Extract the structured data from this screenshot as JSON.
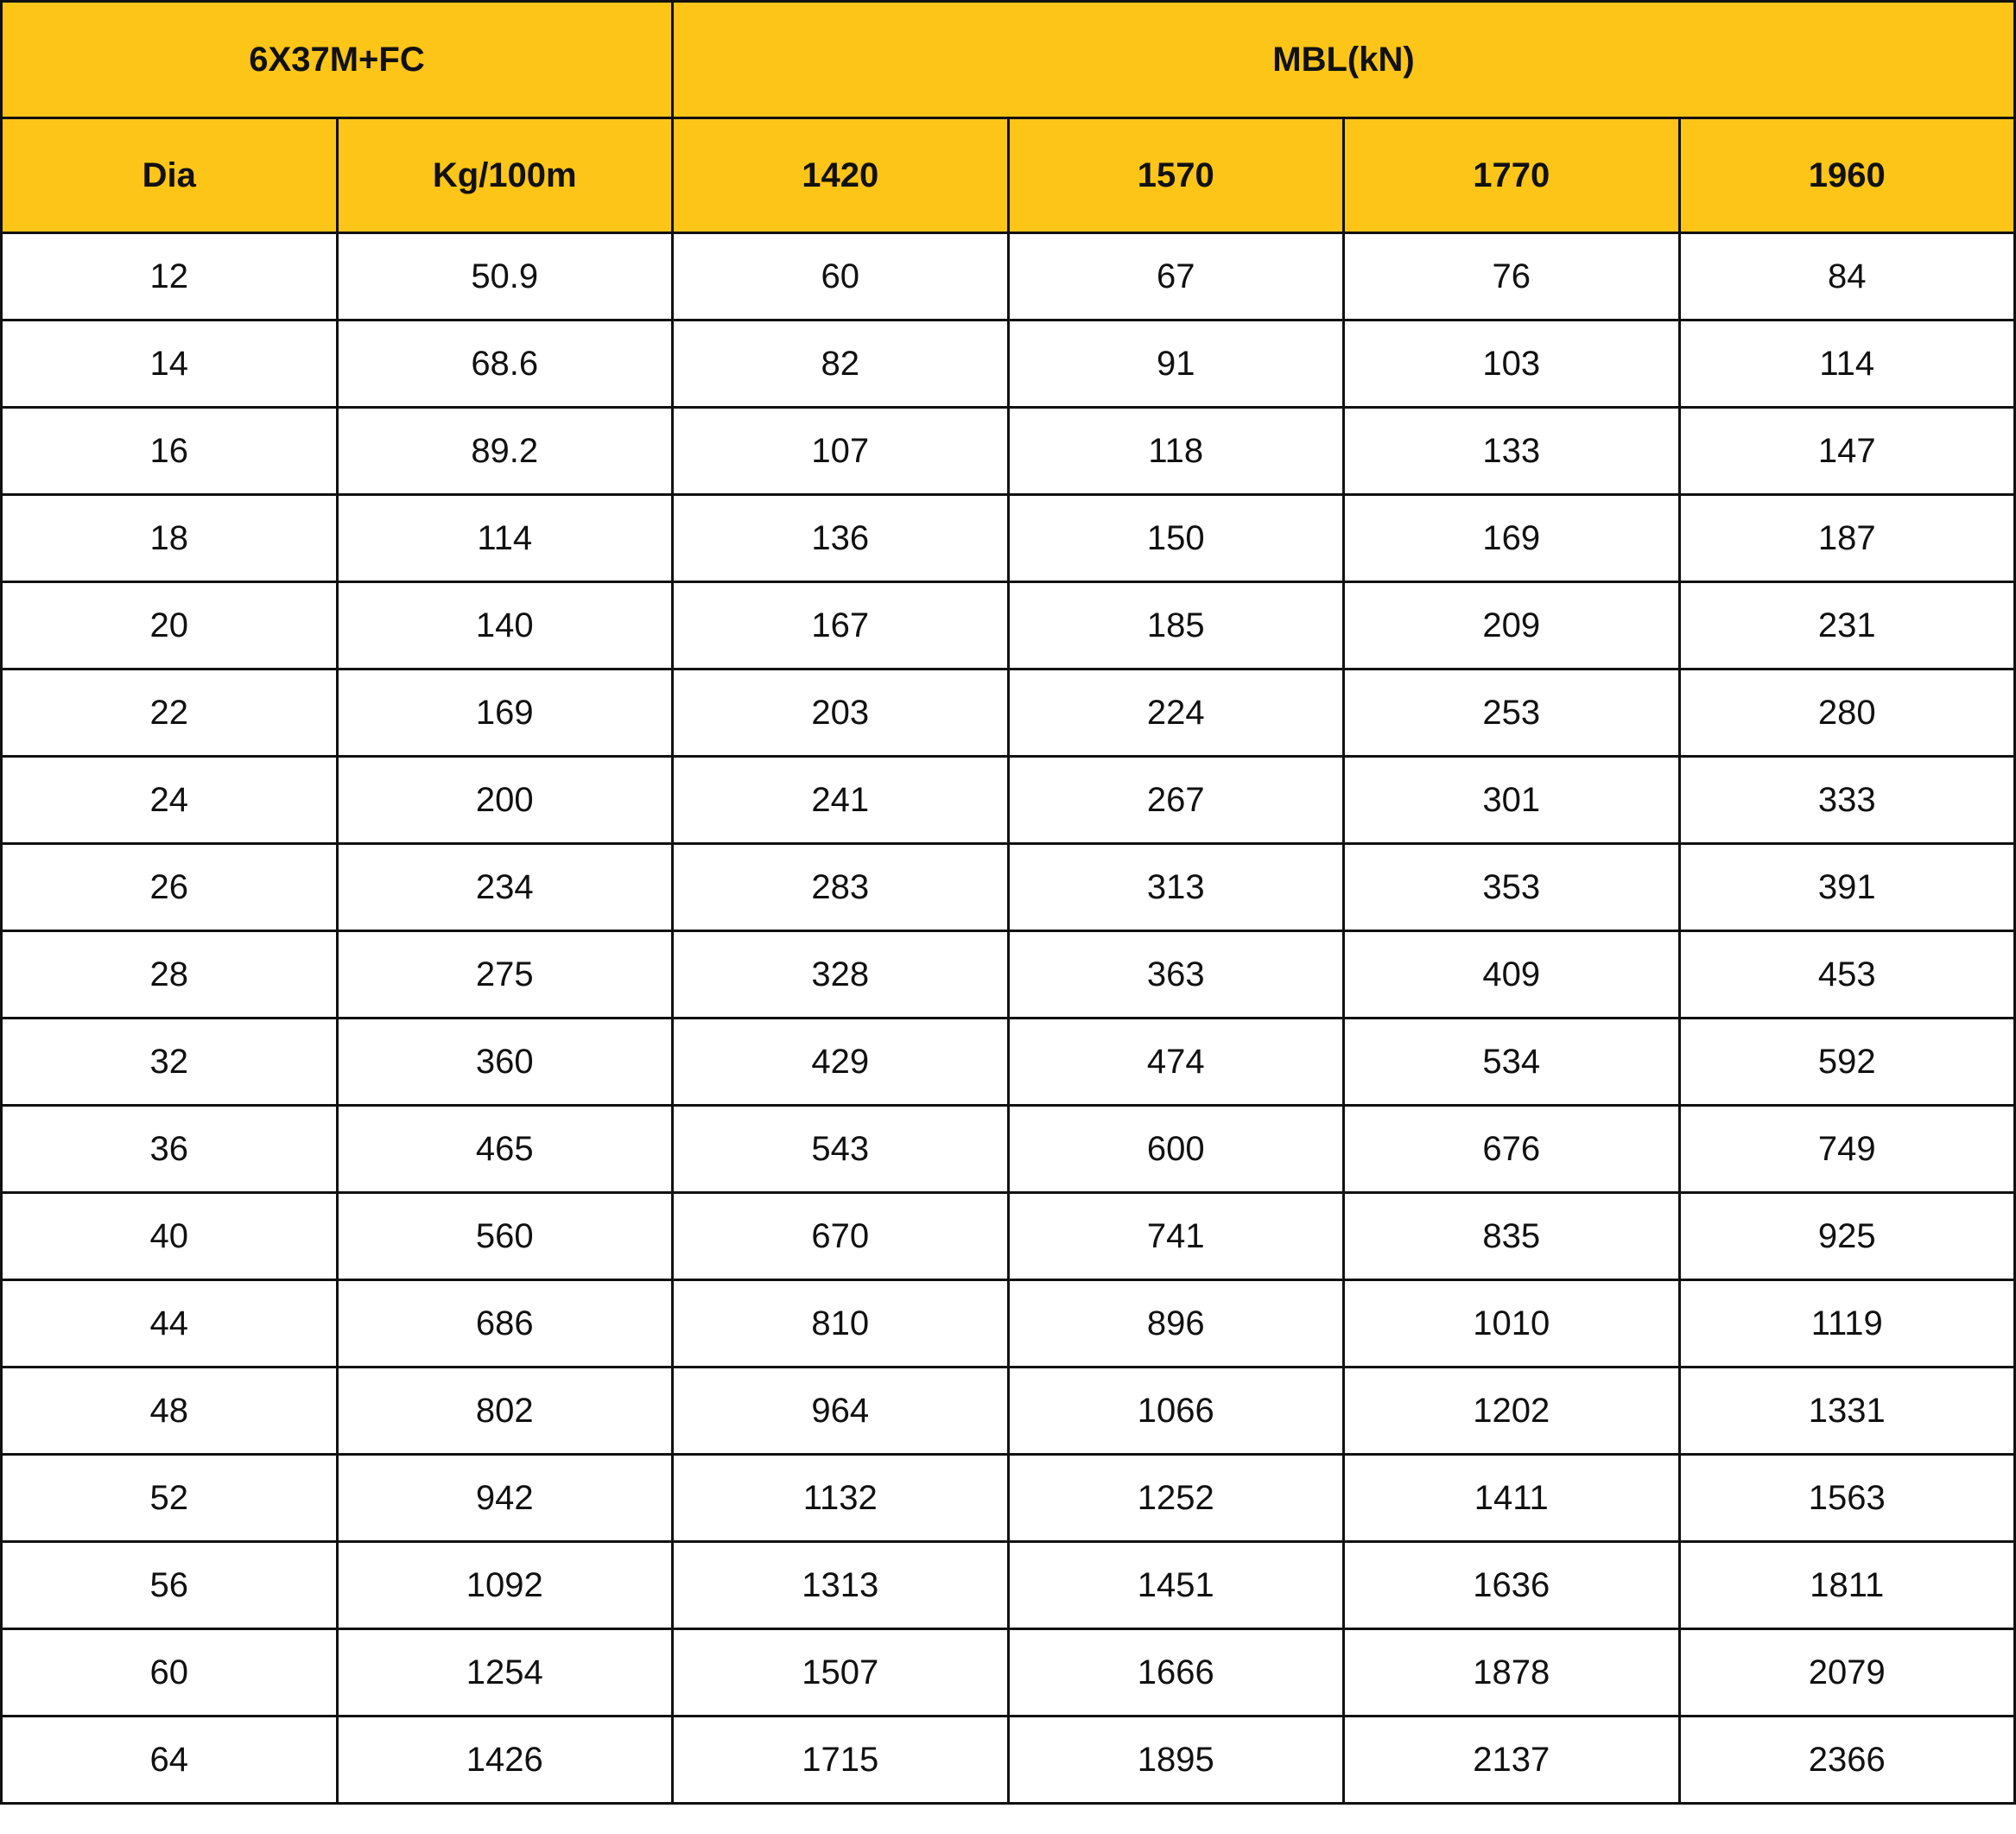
{
  "table": {
    "title": "6X37M+FC",
    "group_header": "MBL(kN)",
    "columns": [
      "Dia",
      "Kg/100m",
      "1420",
      "1570",
      "1770",
      "1960"
    ],
    "rows": [
      [
        "12",
        "50.9",
        "60",
        "67",
        "76",
        "84"
      ],
      [
        "14",
        "68.6",
        "82",
        "91",
        "103",
        "114"
      ],
      [
        "16",
        "89.2",
        "107",
        "118",
        "133",
        "147"
      ],
      [
        "18",
        "114",
        "136",
        "150",
        "169",
        "187"
      ],
      [
        "20",
        "140",
        "167",
        "185",
        "209",
        "231"
      ],
      [
        "22",
        "169",
        "203",
        "224",
        "253",
        "280"
      ],
      [
        "24",
        "200",
        "241",
        "267",
        "301",
        "333"
      ],
      [
        "26",
        "234",
        "283",
        "313",
        "353",
        "391"
      ],
      [
        "28",
        "275",
        "328",
        "363",
        "409",
        "453"
      ],
      [
        "32",
        "360",
        "429",
        "474",
        "534",
        "592"
      ],
      [
        "36",
        "465",
        "543",
        "600",
        "676",
        "749"
      ],
      [
        "40",
        "560",
        "670",
        "741",
        "835",
        "925"
      ],
      [
        "44",
        "686",
        "810",
        "896",
        "1010",
        "1119"
      ],
      [
        "48",
        "802",
        "964",
        "1066",
        "1202",
        "1331"
      ],
      [
        "52",
        "942",
        "1132",
        "1252",
        "1411",
        "1563"
      ],
      [
        "56",
        "1092",
        "1313",
        "1451",
        "1636",
        "1811"
      ],
      [
        "60",
        "1254",
        "1507",
        "1666",
        "1878",
        "2079"
      ],
      [
        "64",
        "1426",
        "1715",
        "1895",
        "2137",
        "2366"
      ]
    ]
  },
  "colors": {
    "header_bg": "#FDC518",
    "border": "#111111"
  }
}
